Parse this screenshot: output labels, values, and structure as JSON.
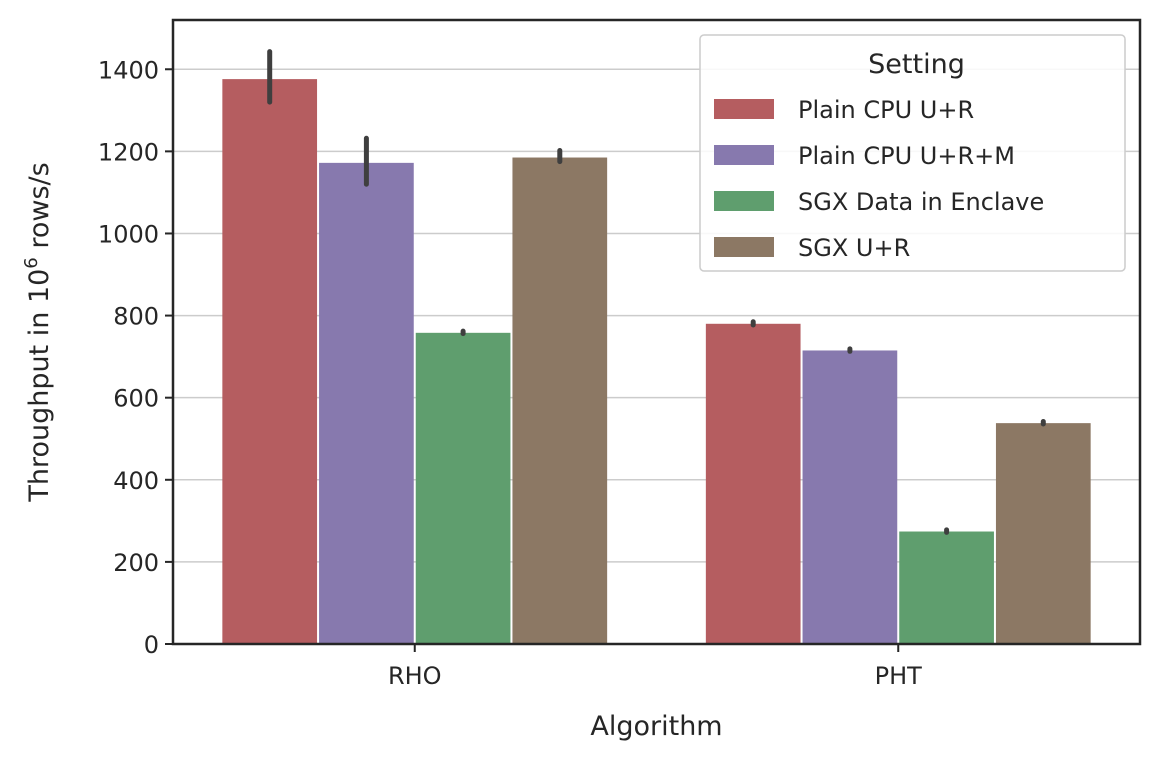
{
  "chart_data": {
    "type": "bar",
    "xlabel": "Algorithm",
    "ylabel_prefix": "Throughput in 10",
    "ylabel_sup": "6",
    "ylabel_suffix": " rows/s",
    "ylim": [
      0,
      1520
    ],
    "yticks": [
      0,
      200,
      400,
      600,
      800,
      1000,
      1200,
      1400
    ],
    "grid": true,
    "categories": [
      "RHO",
      "PHT"
    ],
    "series": [
      {
        "name": "Plain CPU U+R",
        "color": "#b55d60",
        "values": [
          1376,
          780
        ],
        "err_low": [
          1320,
          777
        ],
        "err_high": [
          1443,
          785
        ]
      },
      {
        "name": "Plain CPU U+R+M",
        "color": "#8779ae",
        "values": [
          1172,
          715
        ],
        "err_low": [
          1120,
          713
        ],
        "err_high": [
          1232,
          719
        ]
      },
      {
        "name": "SGX Data in Enclave",
        "color": "#5f9e6e",
        "values": [
          758,
          274
        ],
        "err_low": [
          756,
          272
        ],
        "err_high": [
          762,
          278
        ]
      },
      {
        "name": "SGX U+R",
        "color": "#8c7864",
        "values": [
          1185,
          538
        ],
        "err_low": [
          1175,
          536
        ],
        "err_high": [
          1202,
          542
        ]
      }
    ],
    "legend": {
      "title": "Setting",
      "position": "top-right"
    }
  }
}
